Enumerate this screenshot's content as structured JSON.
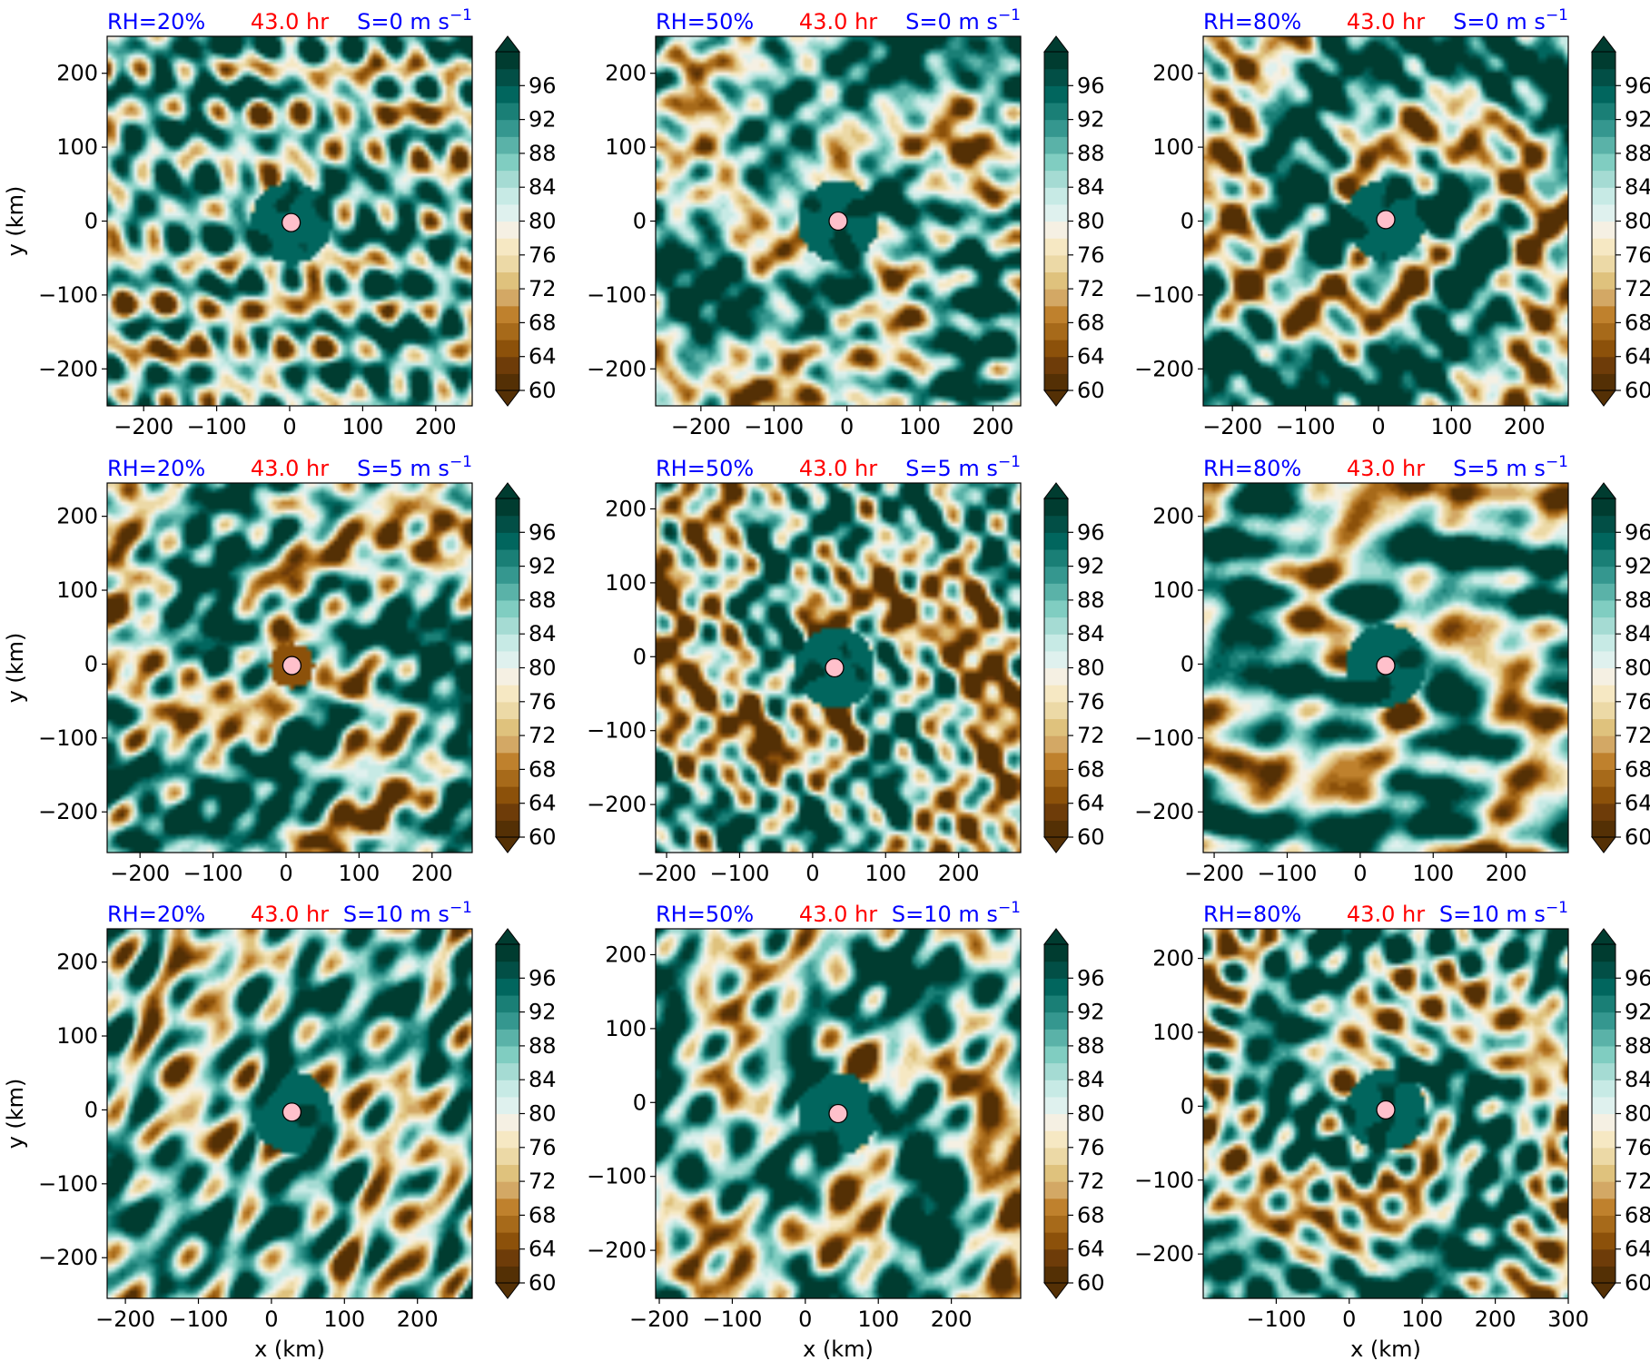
{
  "figure": {
    "xlabel": "x (km)",
    "ylabel": "y (km)",
    "title_colors": {
      "left": "#0000ff",
      "center": "#ff0000",
      "right": "#0000ff"
    },
    "colormap": [
      "#543005",
      "#6e3c09",
      "#8c510a",
      "#a76a1a",
      "#bf812d",
      "#d3a865",
      "#dfc27d",
      "#ecd9a6",
      "#f6e8c3",
      "#f5f0e3",
      "#dff1ee",
      "#c7eae5",
      "#a5dbd3",
      "#80cdc1",
      "#5ab2a8",
      "#35978f",
      "#1a7f76",
      "#01665e",
      "#024f46",
      "#003c30"
    ],
    "marker_color": "#ffc0cb"
  },
  "chart_data": [
    {
      "type": "heatmap",
      "row": 0,
      "col": 0,
      "title_left": "RH=20%",
      "title_center": "43.0 hr",
      "title_right": "S=0 m s",
      "title_right_sup": "−1",
      "xlim": [
        -250,
        250
      ],
      "ylim": [
        -250,
        250
      ],
      "xticks": [
        -200,
        -100,
        0,
        100,
        200
      ],
      "xtick_labels": [
        "−200",
        "−100",
        "0",
        "100",
        "200"
      ],
      "yticks": [
        -200,
        -100,
        0,
        100,
        200
      ],
      "ytick_labels": [
        "−200",
        "−100",
        "0",
        "100",
        "200"
      ],
      "center": [
        2,
        -2
      ],
      "spiral_strength": 0.5,
      "dry_center": false,
      "colorbar": {
        "ticks": [
          "96",
          "92",
          "88",
          "84",
          "80",
          "76",
          "72",
          "68",
          "64",
          "60"
        ],
        "range": [
          60,
          100
        ],
        "extend": "both"
      }
    },
    {
      "type": "heatmap",
      "row": 0,
      "col": 1,
      "title_left": "RH=50%",
      "title_center": "43.0 hr",
      "title_right": "S=0 m s",
      "title_right_sup": "−1",
      "xlim": [
        -262,
        238
      ],
      "ylim": [
        -250,
        250
      ],
      "xticks": [
        -200,
        -100,
        0,
        100,
        200
      ],
      "xtick_labels": [
        "−200",
        "−100",
        "0",
        "100",
        "200"
      ],
      "yticks": [
        -200,
        -100,
        0,
        100,
        200
      ],
      "ytick_labels": [
        "−200",
        "−100",
        "0",
        "100",
        "200"
      ],
      "center": [
        -12,
        0
      ],
      "spiral_strength": 1.0,
      "dry_center": false,
      "colorbar": {
        "ticks": [
          "96",
          "92",
          "88",
          "84",
          "80",
          "76",
          "72",
          "68",
          "64",
          "60"
        ],
        "range": [
          60,
          100
        ],
        "extend": "both"
      }
    },
    {
      "type": "heatmap",
      "row": 0,
      "col": 2,
      "title_left": "RH=80%",
      "title_center": "43.0 hr",
      "title_right": "S=0 m s",
      "title_right_sup": "−1",
      "xlim": [
        -240,
        260
      ],
      "ylim": [
        -250,
        250
      ],
      "xticks": [
        -200,
        -100,
        0,
        100,
        200
      ],
      "xtick_labels": [
        "−200",
        "−100",
        "0",
        "100",
        "200"
      ],
      "yticks": [
        -200,
        -100,
        0,
        100,
        200
      ],
      "ytick_labels": [
        "−200",
        "−100",
        "0",
        "100",
        "200"
      ],
      "center": [
        10,
        2
      ],
      "spiral_strength": 1.2,
      "dry_center": false,
      "colorbar": {
        "ticks": [
          "96",
          "92",
          "88",
          "84",
          "80",
          "76",
          "72",
          "68",
          "64",
          "60"
        ],
        "range": [
          60,
          100
        ],
        "extend": "both"
      }
    },
    {
      "type": "heatmap",
      "row": 1,
      "col": 0,
      "title_left": "RH=20%",
      "title_center": "43.0 hr",
      "title_right": "S=5 m s",
      "title_right_sup": "−1",
      "xlim": [
        -245,
        255
      ],
      "ylim": [
        -255,
        245
      ],
      "xticks": [
        -200,
        -100,
        0,
        100,
        200
      ],
      "xtick_labels": [
        "−200",
        "−100",
        "0",
        "100",
        "200"
      ],
      "yticks": [
        -200,
        -100,
        0,
        100,
        200
      ],
      "ytick_labels": [
        "−200",
        "−100",
        "0",
        "100",
        "200"
      ],
      "center": [
        8,
        -2
      ],
      "spiral_strength": 1.0,
      "dry_center": true,
      "colorbar": {
        "ticks": [
          "96",
          "92",
          "88",
          "84",
          "80",
          "76",
          "72",
          "68",
          "64",
          "60"
        ],
        "range": [
          60,
          100
        ],
        "extend": "both"
      }
    },
    {
      "type": "heatmap",
      "row": 1,
      "col": 1,
      "title_left": "RH=50%",
      "title_center": "43.0 hr",
      "title_right": "S=5 m s",
      "title_right_sup": "−1",
      "xlim": [
        -215,
        285
      ],
      "ylim": [
        -265,
        235
      ],
      "xticks": [
        -200,
        -100,
        0,
        100,
        200
      ],
      "xtick_labels": [
        "−200",
        "−100",
        "0",
        "100",
        "200"
      ],
      "yticks": [
        -200,
        -100,
        0,
        100,
        200
      ],
      "ytick_labels": [
        "−200",
        "−100",
        "0",
        "100",
        "200"
      ],
      "center": [
        30,
        -15
      ],
      "spiral_strength": 1.0,
      "dry_center": false,
      "colorbar": {
        "ticks": [
          "96",
          "92",
          "88",
          "84",
          "80",
          "76",
          "72",
          "68",
          "64",
          "60"
        ],
        "range": [
          60,
          100
        ],
        "extend": "both"
      }
    },
    {
      "type": "heatmap",
      "row": 1,
      "col": 2,
      "title_left": "RH=80%",
      "title_center": "43.0 hr",
      "title_right": "S=5 m s",
      "title_right_sup": "−1",
      "xlim": [
        -215,
        285
      ],
      "ylim": [
        -255,
        245
      ],
      "xticks": [
        -200,
        -100,
        0,
        100,
        200
      ],
      "xtick_labels": [
        "−200",
        "−100",
        "0",
        "100",
        "200"
      ],
      "yticks": [
        -200,
        -100,
        0,
        100,
        200
      ],
      "ytick_labels": [
        "−200",
        "−100",
        "0",
        "100",
        "200"
      ],
      "center": [
        35,
        -2
      ],
      "spiral_strength": 1.1,
      "dry_center": false,
      "colorbar": {
        "ticks": [
          "96",
          "92",
          "88",
          "84",
          "80",
          "76",
          "72",
          "68",
          "64",
          "60"
        ],
        "range": [
          60,
          100
        ],
        "extend": "both"
      }
    },
    {
      "type": "heatmap",
      "row": 2,
      "col": 0,
      "title_left": "RH=20%",
      "title_center": "43.0 hr",
      "title_right": "S=10 m s",
      "title_right_sup": "−1",
      "xlim": [
        -225,
        275
      ],
      "ylim": [
        -255,
        245
      ],
      "xticks": [
        -200,
        -100,
        0,
        100,
        200
      ],
      "xtick_labels": [
        "−200",
        "−100",
        "0",
        "100",
        "200"
      ],
      "yticks": [
        -200,
        -100,
        0,
        100,
        200
      ],
      "ytick_labels": [
        "−200",
        "−100",
        "0",
        "100",
        "200"
      ],
      "center": [
        28,
        -3
      ],
      "spiral_strength": 0.6,
      "dry_center": false,
      "colorbar": {
        "ticks": [
          "96",
          "92",
          "88",
          "84",
          "80",
          "76",
          "72",
          "68",
          "64",
          "60"
        ],
        "range": [
          60,
          100
        ],
        "extend": "both"
      }
    },
    {
      "type": "heatmap",
      "row": 2,
      "col": 1,
      "title_left": "RH=50%",
      "title_center": "43.0 hr",
      "title_right": "S=10 m s",
      "title_right_sup": "−1",
      "xlim": [
        -205,
        295
      ],
      "ylim": [
        -265,
        235
      ],
      "xticks": [
        -200,
        -100,
        0,
        100,
        200
      ],
      "xtick_labels": [
        "−200",
        "−100",
        "0",
        "100",
        "200"
      ],
      "yticks": [
        -200,
        -100,
        0,
        100,
        200
      ],
      "ytick_labels": [
        "−200",
        "−100",
        "0",
        "100",
        "200"
      ],
      "center": [
        45,
        -15
      ],
      "spiral_strength": 1.0,
      "dry_center": false,
      "colorbar": {
        "ticks": [
          "96",
          "92",
          "88",
          "84",
          "80",
          "76",
          "72",
          "68",
          "64",
          "60"
        ],
        "range": [
          60,
          100
        ],
        "extend": "both"
      }
    },
    {
      "type": "heatmap",
      "row": 2,
      "col": 2,
      "title_left": "RH=80%",
      "title_center": "43.0 hr",
      "title_right": "S=10 m s",
      "title_right_sup": "−1",
      "xlim": [
        -200,
        300
      ],
      "ylim": [
        -260,
        240
      ],
      "xticks": [
        -100,
        0,
        100,
        200,
        300
      ],
      "xtick_labels": [
        "−100",
        "0",
        "100",
        "200",
        "300"
      ],
      "yticks": [
        -200,
        -100,
        0,
        100,
        200
      ],
      "ytick_labels": [
        "−200",
        "−100",
        "0",
        "100",
        "200"
      ],
      "center": [
        50,
        -5
      ],
      "spiral_strength": 1.0,
      "dry_center": false,
      "colorbar": {
        "ticks": [
          "96",
          "92",
          "88",
          "84",
          "80",
          "76",
          "72",
          "68",
          "64",
          "60"
        ],
        "range": [
          60,
          100
        ],
        "extend": "both"
      }
    }
  ]
}
